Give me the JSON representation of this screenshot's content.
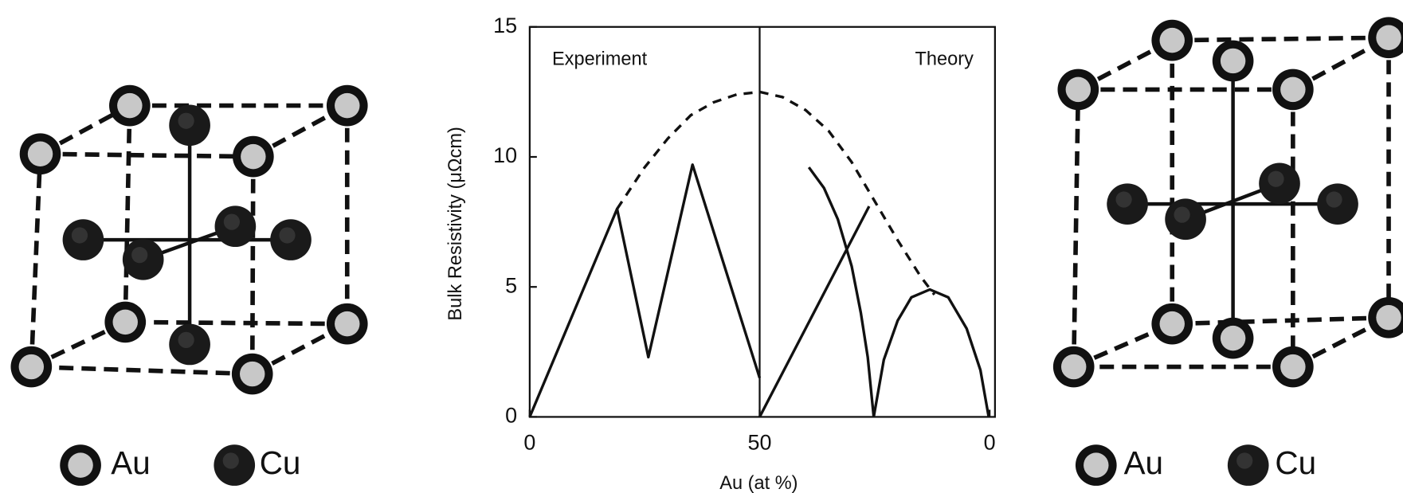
{
  "left_structure": {
    "legend": [
      "Au",
      "Cu"
    ]
  },
  "right_structure": {
    "legend": [
      "Au",
      "Cu"
    ]
  },
  "chart_data": {
    "type": "line",
    "y_label": "Bulk Resistivity (μΩcm)",
    "x_label": "Au (at %)",
    "annotations": [
      "Experiment",
      "Theory"
    ],
    "xlim": [
      0,
      100
    ],
    "ylim": [
      0,
      15
    ],
    "xticks": [
      0,
      50,
      {
        "value": 100,
        "label": "0"
      }
    ],
    "yticks": [
      0,
      5,
      10,
      15
    ],
    "series": [
      {
        "color": "#111111",
        "dash": false,
        "x": [
          0,
          19,
          25.8,
          35.4,
          50
        ],
        "values": [
          0,
          8.0,
          2.3,
          9.7,
          1.5
        ]
      },
      {
        "color": "#111111",
        "dash": false,
        "x": [
          50,
          73.8
        ],
        "values": [
          0,
          8.1
        ]
      },
      {
        "color": "#111111",
        "dash": false,
        "x": [
          60.7,
          64,
          67,
          70,
          72,
          73.5,
          74.8
        ],
        "values": [
          9.6,
          8.8,
          7.6,
          5.8,
          4.0,
          2.3,
          0
        ]
      },
      {
        "color": "#111111",
        "dash": false,
        "x": [
          74.8,
          77,
          80,
          83,
          87,
          91,
          95,
          98,
          99.8
        ],
        "values": [
          0,
          2.2,
          3.7,
          4.6,
          4.9,
          4.6,
          3.4,
          1.8,
          0
        ]
      },
      {
        "color": "#111111",
        "dash": true,
        "x": [
          19,
          25,
          30,
          35,
          40,
          45,
          50,
          55,
          60,
          65,
          70,
          75,
          80,
          85,
          88
        ],
        "values": [
          8.0,
          9.6,
          10.7,
          11.6,
          12.1,
          12.4,
          12.5,
          12.3,
          11.8,
          11.0,
          9.8,
          8.3,
          6.8,
          5.4,
          4.7
        ]
      }
    ]
  }
}
